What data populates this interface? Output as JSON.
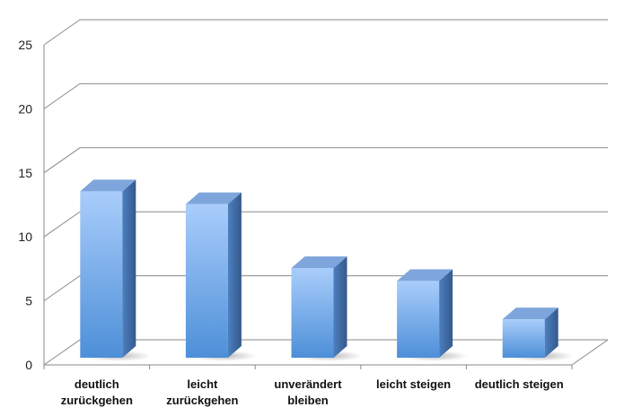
{
  "chart_data": {
    "type": "bar",
    "categories": [
      [
        "deutlich",
        "zurückgehen"
      ],
      [
        "leicht",
        "zurückgehen"
      ],
      [
        "unverändert",
        "bleiben"
      ],
      [
        "leicht steigen"
      ],
      [
        "deutlich steigen"
      ]
    ],
    "values": [
      13,
      12,
      7,
      6,
      3
    ],
    "ylim": [
      0,
      25
    ],
    "yticks": [
      0,
      5,
      10,
      15,
      20,
      25
    ],
    "grid": true,
    "style": "3d-column",
    "colors": {
      "bar_front_top": "#a9cdfb",
      "bar_front_bottom": "#4d8fd8",
      "bar_side": "#3f6eaa",
      "bar_top": "#7fa6dc",
      "grid": "#8a8a8a"
    }
  }
}
